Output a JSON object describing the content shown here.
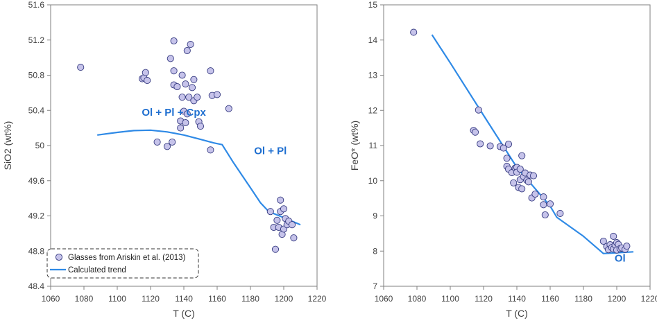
{
  "chart_data": [
    {
      "type": "scatter",
      "title": "",
      "xlabel": "T (C)",
      "ylabel": "SiO2 (wt%)",
      "xlim": [
        1060,
        1220
      ],
      "ylim": [
        48.4,
        51.6
      ],
      "xticks": [
        1060,
        1080,
        1100,
        1120,
        1140,
        1160,
        1180,
        1200,
        1220
      ],
      "yticks": [
        48.4,
        48.8,
        49.2,
        49.6,
        50,
        50.4,
        50.8,
        51.2,
        51.6
      ],
      "xtick_labels": [
        "1060",
        "1080",
        "1100",
        "1120",
        "1140",
        "1160",
        "1180",
        "1200",
        "1220"
      ],
      "ytick_labels": [
        "48.4",
        "48.8",
        "49.2",
        "49.6",
        "50",
        "50.4",
        "50.8",
        "51.2",
        "51.6"
      ],
      "grid": false,
      "annotations": [
        {
          "text": "Ol + Pl + Cpx",
          "x": 1134,
          "y": 50.34
        },
        {
          "text": "Ol + Pl",
          "x": 1192,
          "y": 49.9
        }
      ],
      "legend": {
        "placement": "bottom-left",
        "entries": [
          "Glasses from Ariskin et al. (2013)",
          "Calculated trend"
        ]
      },
      "series": [
        {
          "name": "Glasses from Ariskin et al. (2013)",
          "kind": "points",
          "points": [
            [
              1078,
              50.89
            ],
            [
              1115,
              50.76
            ],
            [
              1116,
              50.77
            ],
            [
              1117,
              50.83
            ],
            [
              1118,
              50.74
            ],
            [
              1124,
              50.04
            ],
            [
              1130,
              49.99
            ],
            [
              1132,
              50.99
            ],
            [
              1133,
              50.04
            ],
            [
              1134,
              51.19
            ],
            [
              1134,
              50.69
            ],
            [
              1134,
              50.85
            ],
            [
              1136,
              50.67
            ],
            [
              1138,
              50.2
            ],
            [
              1138,
              50.28
            ],
            [
              1139,
              50.55
            ],
            [
              1139,
              50.8
            ],
            [
              1140,
              50.39
            ],
            [
              1141,
              50.26
            ],
            [
              1141,
              50.7
            ],
            [
              1142,
              51.08
            ],
            [
              1142,
              50.36
            ],
            [
              1143,
              50.55
            ],
            [
              1144,
              51.15
            ],
            [
              1145,
              50.66
            ],
            [
              1146,
              50.51
            ],
            [
              1146,
              50.75
            ],
            [
              1148,
              50.55
            ],
            [
              1149,
              50.27
            ],
            [
              1150,
              50.22
            ],
            [
              1156,
              50.85
            ],
            [
              1156,
              49.95
            ],
            [
              1157,
              50.57
            ],
            [
              1160,
              50.58
            ],
            [
              1167,
              50.42
            ],
            [
              1192,
              49.25
            ],
            [
              1194,
              49.07
            ],
            [
              1195,
              48.82
            ],
            [
              1196,
              49.15
            ],
            [
              1197,
              49.07
            ],
            [
              1198,
              49.38
            ],
            [
              1198,
              49.25
            ],
            [
              1199,
              48.99
            ],
            [
              1200,
              49.28
            ],
            [
              1200,
              49.05
            ],
            [
              1201,
              49.17
            ],
            [
              1202,
              49.1
            ],
            [
              1203,
              49.14
            ],
            [
              1205,
              49.1
            ],
            [
              1206,
              48.95
            ]
          ]
        },
        {
          "name": "Calculated trend",
          "kind": "line",
          "points": [
            [
              1088,
              50.12
            ],
            [
              1100,
              50.15
            ],
            [
              1110,
              50.17
            ],
            [
              1120,
              50.175
            ],
            [
              1130,
              50.155
            ],
            [
              1140,
              50.12
            ],
            [
              1150,
              50.07
            ],
            [
              1158,
              50.03
            ],
            [
              1163,
              50.01
            ],
            [
              1170,
              49.8
            ],
            [
              1180,
              49.52
            ],
            [
              1186,
              49.35
            ],
            [
              1191,
              49.25
            ],
            [
              1200,
              49.18
            ],
            [
              1210,
              49.1
            ]
          ]
        }
      ]
    },
    {
      "type": "scatter",
      "title": "",
      "xlabel": "T (C)",
      "ylabel": "FeO* (wt%)",
      "xlim": [
        1060,
        1220
      ],
      "ylim": [
        7,
        15
      ],
      "xticks": [
        1060,
        1080,
        1100,
        1120,
        1140,
        1160,
        1180,
        1200,
        1220
      ],
      "yticks": [
        7,
        8,
        9,
        10,
        11,
        12,
        13,
        14,
        15
      ],
      "xtick_labels": [
        "1060",
        "1080",
        "1100",
        "1120",
        "1140",
        "1160",
        "1180",
        "1200",
        "1220"
      ],
      "ytick_labels": [
        "7",
        "8",
        "9",
        "10",
        "11",
        "12",
        "13",
        "14",
        "15"
      ],
      "grid": false,
      "annotations": [
        {
          "text": "Ol",
          "x": 1202,
          "y": 7.7
        }
      ],
      "series": [
        {
          "name": "Glasses from Ariskin et al. (2013)",
          "kind": "points",
          "points": [
            [
              1078,
              14.22
            ],
            [
              1114,
              11.43
            ],
            [
              1115,
              11.38
            ],
            [
              1117,
              12.01
            ],
            [
              1118,
              11.05
            ],
            [
              1124,
              10.99
            ],
            [
              1130,
              10.97
            ],
            [
              1132,
              10.93
            ],
            [
              1134,
              10.64
            ],
            [
              1134,
              10.41
            ],
            [
              1135,
              11.04
            ],
            [
              1135,
              10.33
            ],
            [
              1137,
              10.23
            ],
            [
              1138,
              9.94
            ],
            [
              1139,
              10.36
            ],
            [
              1140,
              10.38
            ],
            [
              1140,
              10.24
            ],
            [
              1141,
              9.81
            ],
            [
              1142,
              10.33
            ],
            [
              1142,
              10.03
            ],
            [
              1143,
              10.71
            ],
            [
              1143,
              9.77
            ],
            [
              1144,
              10.12
            ],
            [
              1145,
              10.22
            ],
            [
              1146,
              10.01
            ],
            [
              1147,
              9.97
            ],
            [
              1148,
              10.16
            ],
            [
              1149,
              9.51
            ],
            [
              1150,
              10.14
            ],
            [
              1151,
              9.62
            ],
            [
              1156,
              9.54
            ],
            [
              1156,
              9.32
            ],
            [
              1157,
              9.03
            ],
            [
              1160,
              9.34
            ],
            [
              1166,
              9.07
            ],
            [
              1192,
              8.28
            ],
            [
              1194,
              8.13
            ],
            [
              1195,
              8.04
            ],
            [
              1196,
              8.18
            ],
            [
              1197,
              8.1
            ],
            [
              1198,
              8.42
            ],
            [
              1198,
              8.06
            ],
            [
              1199,
              8.17
            ],
            [
              1200,
              8.24
            ],
            [
              1200,
              8.03
            ],
            [
              1201,
              8.19
            ],
            [
              1202,
              8.07
            ],
            [
              1203,
              8.09
            ],
            [
              1205,
              8.05
            ],
            [
              1206,
              8.14
            ]
          ]
        },
        {
          "name": "Calculated trend",
          "kind": "line",
          "points": [
            [
              1089,
              14.15
            ],
            [
              1100,
              13.35
            ],
            [
              1120,
              11.86
            ],
            [
              1140,
              10.38
            ],
            [
              1160,
              9.28
            ],
            [
              1164,
              8.96
            ],
            [
              1180,
              8.42
            ],
            [
              1192,
              7.93
            ],
            [
              1210,
              7.98
            ]
          ]
        }
      ]
    }
  ],
  "colors": {
    "marker_fill": "#c6c3ea",
    "marker_stroke": "#353a80",
    "trend_line": "#2f8ae6",
    "annotation": "#1f6fd0",
    "axis": "#7f7f7f",
    "text": "#404040"
  }
}
